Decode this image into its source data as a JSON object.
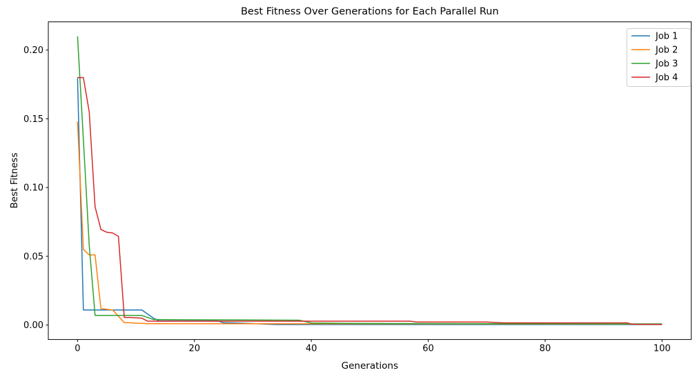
{
  "figure": {
    "background": "#ffffff",
    "axis_color": "#000000",
    "text_color": "#000000"
  },
  "chart_data": {
    "type": "line",
    "title": "Best Fitness Over Generations for Each Parallel Run",
    "xlabel": "Generations",
    "ylabel": "Best Fitness",
    "xlim": [
      -5,
      105
    ],
    "ylim": [
      -0.0105,
      0.2205
    ],
    "x_ticks": [
      0,
      20,
      40,
      60,
      80,
      100
    ],
    "x_tick_labels": [
      "0",
      "20",
      "40",
      "60",
      "80",
      "100"
    ],
    "y_ticks": [
      0.0,
      0.05,
      0.1,
      0.15,
      0.2
    ],
    "y_tick_labels": [
      "0.00",
      "0.05",
      "0.10",
      "0.15",
      "0.20"
    ],
    "grid": false,
    "legend": {
      "position": "upper right",
      "border_color": "#cccccc",
      "background": "#ffffff",
      "entries": [
        "Job 1",
        "Job 2",
        "Job 3",
        "Job 4"
      ]
    },
    "series": [
      {
        "name": "Job 1",
        "color": "#1f77b4",
        "x": [
          0,
          1,
          11,
          13,
          14,
          24,
          25,
          27,
          34,
          100
        ],
        "y": [
          0.18,
          0.011,
          0.011,
          0.005,
          0.003,
          0.003,
          0.0017,
          0.0015,
          0.0004,
          0.0004
        ]
      },
      {
        "name": "Job 2",
        "color": "#ff7f0e",
        "x": [
          0,
          1,
          2,
          3,
          4,
          6,
          8,
          12,
          100
        ],
        "y": [
          0.148,
          0.055,
          0.051,
          0.051,
          0.012,
          0.011,
          0.0018,
          0.001,
          0.0007
        ]
      },
      {
        "name": "Job 3",
        "color": "#2ca02c",
        "x": [
          0,
          1,
          2,
          3,
          11,
          13,
          38,
          40,
          47,
          62,
          100
        ],
        "y": [
          0.21,
          0.135,
          0.058,
          0.007,
          0.007,
          0.004,
          0.0035,
          0.0015,
          0.0012,
          0.001,
          0.0008
        ]
      },
      {
        "name": "Job 4",
        "color": "#d62728",
        "x": [
          0,
          1,
          2,
          3,
          4,
          5,
          6,
          7,
          8,
          9,
          11,
          12,
          57,
          58,
          70,
          73,
          94,
          95,
          100
        ],
        "y": [
          0.18,
          0.18,
          0.155,
          0.086,
          0.0695,
          0.0675,
          0.067,
          0.0645,
          0.0055,
          0.0055,
          0.005,
          0.0028,
          0.0028,
          0.0022,
          0.0022,
          0.0016,
          0.0016,
          0.0005,
          0.0005
        ]
      }
    ]
  }
}
